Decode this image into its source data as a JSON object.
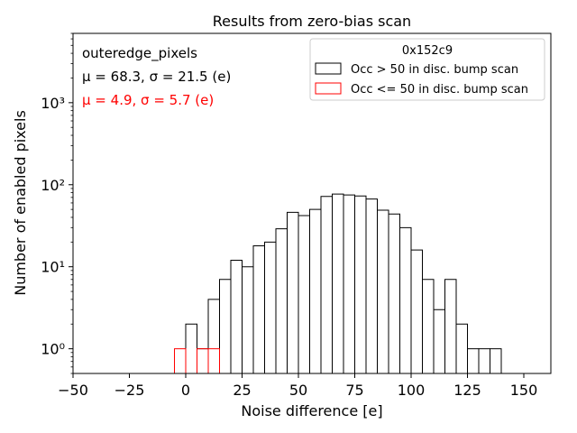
{
  "chart_data": {
    "type": "histogram",
    "title": "Results from zero-bias scan",
    "xlabel": "Noise difference [e]",
    "ylabel": "Number of enabled pixels",
    "xlim": [
      -50,
      162
    ],
    "ylim_log": [
      0.5,
      7000
    ],
    "y_scale": "log",
    "x_ticks": [
      -50,
      -25,
      0,
      25,
      50,
      75,
      100,
      125,
      150
    ],
    "x_tick_labels": [
      "−50",
      "−25",
      "0",
      "25",
      "50",
      "75",
      "100",
      "125",
      "150"
    ],
    "y_major_ticks": [
      1,
      10,
      100,
      1000
    ],
    "y_tick_labels": [
      "10⁰",
      "10¹",
      "10²",
      "10³"
    ],
    "bin_width": 5,
    "annotations": {
      "group": "outeredge_pixels",
      "stats_black": "μ = 68.3, σ = 21.5 (e)",
      "stats_red": "μ = 4.9, σ = 5.7 (e)"
    },
    "legend": {
      "title": "0x152c9",
      "position": "top-right",
      "entries": [
        {
          "label": "Occ > 50 in disc. bump scan",
          "color": "#000000"
        },
        {
          "label": "Occ <= 50 in disc. bump scan",
          "color": "#ff0000"
        }
      ]
    },
    "series": [
      {
        "name": "Occ > 50 in disc. bump scan",
        "color": "#000000",
        "bins": [
          [
            0,
            2
          ],
          [
            5,
            1
          ],
          [
            10,
            4
          ],
          [
            15,
            7
          ],
          [
            20,
            12
          ],
          [
            25,
            10
          ],
          [
            30,
            18
          ],
          [
            35,
            20
          ],
          [
            40,
            29
          ],
          [
            45,
            46
          ],
          [
            50,
            42
          ],
          [
            55,
            50
          ],
          [
            60,
            72
          ],
          [
            65,
            77
          ],
          [
            70,
            75
          ],
          [
            75,
            73
          ],
          [
            80,
            67
          ],
          [
            85,
            49
          ],
          [
            90,
            44
          ],
          [
            95,
            30
          ],
          [
            100,
            16
          ],
          [
            105,
            7
          ],
          [
            110,
            3
          ],
          [
            115,
            7
          ],
          [
            120,
            2
          ],
          [
            125,
            1
          ],
          [
            130,
            1
          ],
          [
            135,
            1
          ]
        ]
      },
      {
        "name": "Occ <= 50 in disc. bump scan",
        "color": "#ff0000",
        "bins": [
          [
            -5,
            1
          ],
          [
            5,
            1
          ],
          [
            10,
            1
          ]
        ]
      }
    ]
  }
}
